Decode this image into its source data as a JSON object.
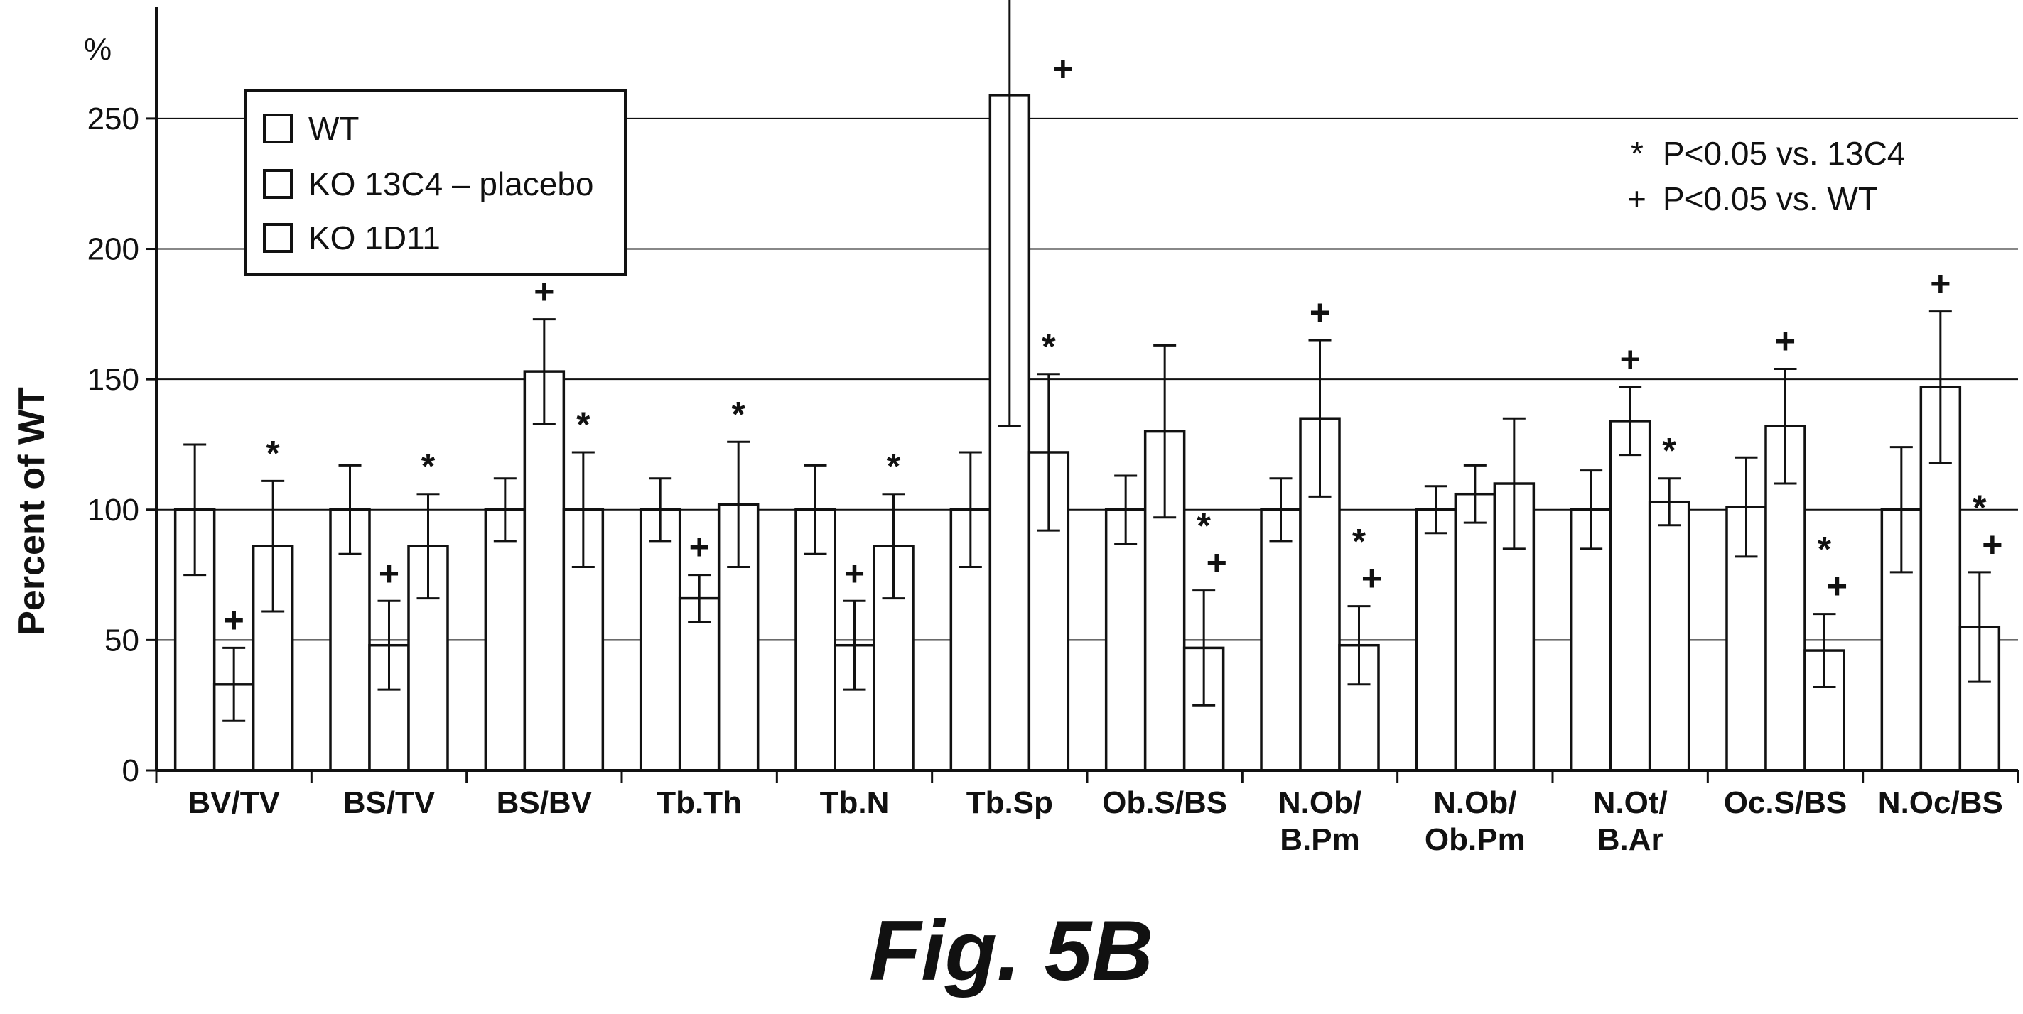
{
  "figure_caption": "Fig. 5B",
  "notes": [
    {
      "symbol": "*",
      "text": "P<0.05 vs. 13C4"
    },
    {
      "symbol": "+",
      "text": "P<0.05 vs. WT"
    }
  ],
  "chart_data": {
    "type": "bar",
    "title": "",
    "xlabel": "",
    "ylabel": "Percent of WT",
    "yunit": "%",
    "ylim": [
      0,
      290
    ],
    "yticks": [
      0,
      50,
      100,
      150,
      200,
      250
    ],
    "grid": true,
    "legend_position": "top-left",
    "categories": [
      [
        "BV/TV"
      ],
      [
        "BS/TV"
      ],
      [
        "BS/BV"
      ],
      [
        "Tb.Th"
      ],
      [
        "Tb.N"
      ],
      [
        "Tb.Sp"
      ],
      [
        "Ob.S/BS"
      ],
      [
        "N.Ob/",
        "B.Pm"
      ],
      [
        "N.Ob/",
        "Ob.Pm"
      ],
      [
        "N.Ot/",
        "B.Ar"
      ],
      [
        "Oc.S/BS"
      ],
      [
        "N.Oc/BS"
      ]
    ],
    "series": [
      {
        "name": "WT",
        "values": [
          100,
          100,
          100,
          100,
          100,
          100,
          100,
          100,
          100,
          100,
          101,
          100
        ],
        "errors": [
          25,
          17,
          12,
          12,
          17,
          22,
          13,
          12,
          9,
          15,
          19,
          24
        ],
        "markers": [
          "",
          "",
          "",
          "",
          "",
          "",
          "",
          "",
          "",
          "",
          "",
          ""
        ]
      },
      {
        "name": "KO 13C4 – placebo",
        "values": [
          33,
          48,
          153,
          66,
          48,
          259,
          130,
          135,
          106,
          134,
          132,
          147
        ],
        "errors": [
          14,
          17,
          20,
          9,
          17,
          127,
          33,
          30,
          11,
          13,
          22,
          29
        ],
        "markers": [
          "+",
          "+",
          "+",
          "+",
          "+",
          "+",
          "",
          "+",
          "",
          "+",
          "+",
          "+"
        ]
      },
      {
        "name": "KO 1D11",
        "values": [
          86,
          86,
          100,
          102,
          86,
          122,
          47,
          48,
          110,
          103,
          46,
          55
        ],
        "errors": [
          25,
          20,
          22,
          24,
          20,
          30,
          22,
          15,
          25,
          9,
          14,
          21
        ],
        "markers": [
          "*",
          "*",
          "*",
          "*",
          "*",
          "*",
          "*+",
          "*+",
          "",
          "*",
          "*+",
          "*+"
        ]
      }
    ]
  }
}
